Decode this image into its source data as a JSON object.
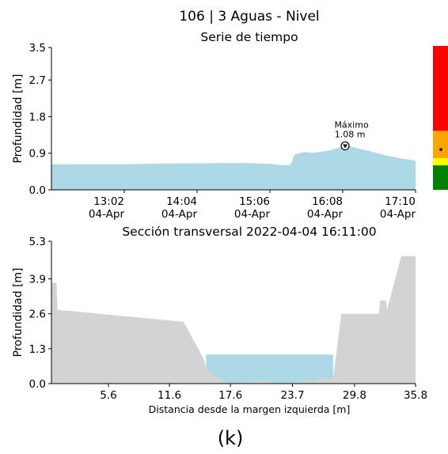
{
  "figure_caption": "(k)",
  "chart_data": [
    {
      "type": "area",
      "title": "106 | 3 Aguas - Nivel",
      "subtitle": "Serie de tiempo",
      "xlabel": "",
      "ylabel": "Profundidad [m]",
      "x_unit": "minutes",
      "xlim": [
        0,
        300
      ],
      "ylim": [
        0,
        3.5
      ],
      "yticks": [
        0.0,
        0.9,
        1.8,
        2.7,
        3.5
      ],
      "ytick_labels": [
        "0.0",
        "0.9",
        "1.8",
        "2.7",
        "3.5"
      ],
      "xticks": [
        {
          "x": 60,
          "time": "13:02",
          "date": "04-Apr"
        },
        {
          "x": 120,
          "time": "14:04",
          "date": "04-Apr"
        },
        {
          "x": 180,
          "time": "15:06",
          "date": "04-Apr"
        },
        {
          "x": 240,
          "time": "16:08",
          "date": "04-Apr"
        },
        {
          "x": 300,
          "time": "17:10",
          "date": "04-Apr"
        }
      ],
      "series": [
        {
          "color": "#add8e6",
          "x": [
            0,
            20,
            40,
            60,
            80,
            100,
            120,
            140,
            160,
            180,
            190,
            196,
            198,
            200,
            205,
            210,
            215,
            220,
            225,
            230,
            235,
            240,
            245,
            250,
            255,
            260,
            265,
            270,
            275,
            280,
            285,
            290,
            295,
            300
          ],
          "values": [
            0.63,
            0.63,
            0.63,
            0.63,
            0.64,
            0.65,
            0.65,
            0.66,
            0.66,
            0.64,
            0.61,
            0.61,
            0.68,
            0.86,
            0.91,
            0.93,
            0.91,
            0.93,
            0.95,
            0.98,
            1.02,
            1.05,
            1.08,
            1.04,
            1.0,
            0.97,
            0.93,
            0.89,
            0.85,
            0.82,
            0.79,
            0.76,
            0.74,
            0.72
          ]
        }
      ],
      "annotations": [
        {
          "text": "Máximo",
          "x": 242,
          "y": 1.08
        },
        {
          "text": "1.08 m",
          "x": 242,
          "y": 1.08
        }
      ],
      "max_marker": {
        "x": 242,
        "y": 1.08
      },
      "alert_bar": [
        {
          "color": "#008000",
          "from": 0.0,
          "to": 0.17
        },
        {
          "color": "#ffff00",
          "from": 0.17,
          "to": 0.22
        },
        {
          "color": "#ffa500",
          "from": 0.22,
          "to": 0.41
        },
        {
          "color": "#ff0000",
          "from": 0.41,
          "to": 1.0
        }
      ],
      "alert_level_marker": 0.28,
      "grid": false,
      "legend": "none"
    },
    {
      "type": "area",
      "title": "Sección transversal 2022-04-04 16:11:00",
      "xlabel": "Distancia desde la margen izquierda [m]",
      "ylabel": "Profundidad [m]",
      "xlim": [
        0,
        35.8
      ],
      "ylim": [
        0,
        5.3
      ],
      "xticks": [
        5.6,
        11.6,
        17.6,
        23.7,
        29.8,
        35.8
      ],
      "xtick_labels": [
        "5.6",
        "11.6",
        "17.6",
        "23.7",
        "29.8",
        "35.8"
      ],
      "yticks": [
        0.0,
        1.3,
        2.6,
        3.9,
        5.3
      ],
      "ytick_labels": [
        "0.0",
        "1.3",
        "2.6",
        "3.9",
        "5.3"
      ],
      "water_level": 1.08,
      "water_range": [
        15.2,
        27.7
      ],
      "water_color": "#add8e6",
      "bed_color": "#d3d3d3",
      "bed_profile": {
        "x": [
          0,
          0.5,
          0.6,
          13.0,
          15.0,
          15.2,
          17.0,
          18.5,
          20.0,
          21.0,
          22.0,
          23.7,
          25.0,
          26.5,
          27.7,
          28.0,
          28.5,
          32.2,
          32.3,
          32.9,
          33.0,
          34.4,
          35.0,
          35.8
        ],
        "y": [
          3.75,
          3.75,
          2.75,
          2.3,
          0.9,
          0.55,
          0.05,
          0.0,
          0.08,
          0.12,
          0.0,
          0.0,
          0.1,
          0.18,
          0.2,
          1.1,
          2.6,
          2.6,
          3.1,
          3.1,
          2.75,
          4.75,
          4.75,
          4.75
        ]
      },
      "grid": false,
      "legend": "none"
    }
  ]
}
